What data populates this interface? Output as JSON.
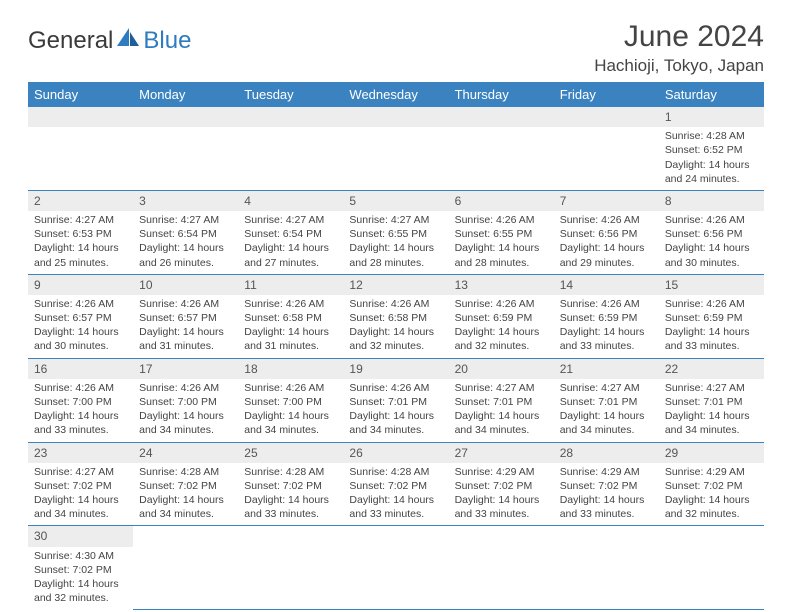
{
  "brand": {
    "part1": "General",
    "part2": "Blue"
  },
  "title": "June 2024",
  "location": "Hachioji, Tokyo, Japan",
  "colors": {
    "header_bg": "#3b83c0",
    "header_text": "#ffffff",
    "daynum_bg": "#ededed",
    "text": "#444444",
    "border": "#3b83c0"
  },
  "day_headers": [
    "Sunday",
    "Monday",
    "Tuesday",
    "Wednesday",
    "Thursday",
    "Friday",
    "Saturday"
  ],
  "weeks": [
    [
      null,
      null,
      null,
      null,
      null,
      null,
      {
        "n": "1",
        "sr": "Sunrise: 4:28 AM",
        "ss": "Sunset: 6:52 PM",
        "d1": "Daylight: 14 hours",
        "d2": "and 24 minutes."
      }
    ],
    [
      {
        "n": "2",
        "sr": "Sunrise: 4:27 AM",
        "ss": "Sunset: 6:53 PM",
        "d1": "Daylight: 14 hours",
        "d2": "and 25 minutes."
      },
      {
        "n": "3",
        "sr": "Sunrise: 4:27 AM",
        "ss": "Sunset: 6:54 PM",
        "d1": "Daylight: 14 hours",
        "d2": "and 26 minutes."
      },
      {
        "n": "4",
        "sr": "Sunrise: 4:27 AM",
        "ss": "Sunset: 6:54 PM",
        "d1": "Daylight: 14 hours",
        "d2": "and 27 minutes."
      },
      {
        "n": "5",
        "sr": "Sunrise: 4:27 AM",
        "ss": "Sunset: 6:55 PM",
        "d1": "Daylight: 14 hours",
        "d2": "and 28 minutes."
      },
      {
        "n": "6",
        "sr": "Sunrise: 4:26 AM",
        "ss": "Sunset: 6:55 PM",
        "d1": "Daylight: 14 hours",
        "d2": "and 28 minutes."
      },
      {
        "n": "7",
        "sr": "Sunrise: 4:26 AM",
        "ss": "Sunset: 6:56 PM",
        "d1": "Daylight: 14 hours",
        "d2": "and 29 minutes."
      },
      {
        "n": "8",
        "sr": "Sunrise: 4:26 AM",
        "ss": "Sunset: 6:56 PM",
        "d1": "Daylight: 14 hours",
        "d2": "and 30 minutes."
      }
    ],
    [
      {
        "n": "9",
        "sr": "Sunrise: 4:26 AM",
        "ss": "Sunset: 6:57 PM",
        "d1": "Daylight: 14 hours",
        "d2": "and 30 minutes."
      },
      {
        "n": "10",
        "sr": "Sunrise: 4:26 AM",
        "ss": "Sunset: 6:57 PM",
        "d1": "Daylight: 14 hours",
        "d2": "and 31 minutes."
      },
      {
        "n": "11",
        "sr": "Sunrise: 4:26 AM",
        "ss": "Sunset: 6:58 PM",
        "d1": "Daylight: 14 hours",
        "d2": "and 31 minutes."
      },
      {
        "n": "12",
        "sr": "Sunrise: 4:26 AM",
        "ss": "Sunset: 6:58 PM",
        "d1": "Daylight: 14 hours",
        "d2": "and 32 minutes."
      },
      {
        "n": "13",
        "sr": "Sunrise: 4:26 AM",
        "ss": "Sunset: 6:59 PM",
        "d1": "Daylight: 14 hours",
        "d2": "and 32 minutes."
      },
      {
        "n": "14",
        "sr": "Sunrise: 4:26 AM",
        "ss": "Sunset: 6:59 PM",
        "d1": "Daylight: 14 hours",
        "d2": "and 33 minutes."
      },
      {
        "n": "15",
        "sr": "Sunrise: 4:26 AM",
        "ss": "Sunset: 6:59 PM",
        "d1": "Daylight: 14 hours",
        "d2": "and 33 minutes."
      }
    ],
    [
      {
        "n": "16",
        "sr": "Sunrise: 4:26 AM",
        "ss": "Sunset: 7:00 PM",
        "d1": "Daylight: 14 hours",
        "d2": "and 33 minutes."
      },
      {
        "n": "17",
        "sr": "Sunrise: 4:26 AM",
        "ss": "Sunset: 7:00 PM",
        "d1": "Daylight: 14 hours",
        "d2": "and 34 minutes."
      },
      {
        "n": "18",
        "sr": "Sunrise: 4:26 AM",
        "ss": "Sunset: 7:00 PM",
        "d1": "Daylight: 14 hours",
        "d2": "and 34 minutes."
      },
      {
        "n": "19",
        "sr": "Sunrise: 4:26 AM",
        "ss": "Sunset: 7:01 PM",
        "d1": "Daylight: 14 hours",
        "d2": "and 34 minutes."
      },
      {
        "n": "20",
        "sr": "Sunrise: 4:27 AM",
        "ss": "Sunset: 7:01 PM",
        "d1": "Daylight: 14 hours",
        "d2": "and 34 minutes."
      },
      {
        "n": "21",
        "sr": "Sunrise: 4:27 AM",
        "ss": "Sunset: 7:01 PM",
        "d1": "Daylight: 14 hours",
        "d2": "and 34 minutes."
      },
      {
        "n": "22",
        "sr": "Sunrise: 4:27 AM",
        "ss": "Sunset: 7:01 PM",
        "d1": "Daylight: 14 hours",
        "d2": "and 34 minutes."
      }
    ],
    [
      {
        "n": "23",
        "sr": "Sunrise: 4:27 AM",
        "ss": "Sunset: 7:02 PM",
        "d1": "Daylight: 14 hours",
        "d2": "and 34 minutes."
      },
      {
        "n": "24",
        "sr": "Sunrise: 4:28 AM",
        "ss": "Sunset: 7:02 PM",
        "d1": "Daylight: 14 hours",
        "d2": "and 34 minutes."
      },
      {
        "n": "25",
        "sr": "Sunrise: 4:28 AM",
        "ss": "Sunset: 7:02 PM",
        "d1": "Daylight: 14 hours",
        "d2": "and 33 minutes."
      },
      {
        "n": "26",
        "sr": "Sunrise: 4:28 AM",
        "ss": "Sunset: 7:02 PM",
        "d1": "Daylight: 14 hours",
        "d2": "and 33 minutes."
      },
      {
        "n": "27",
        "sr": "Sunrise: 4:29 AM",
        "ss": "Sunset: 7:02 PM",
        "d1": "Daylight: 14 hours",
        "d2": "and 33 minutes."
      },
      {
        "n": "28",
        "sr": "Sunrise: 4:29 AM",
        "ss": "Sunset: 7:02 PM",
        "d1": "Daylight: 14 hours",
        "d2": "and 33 minutes."
      },
      {
        "n": "29",
        "sr": "Sunrise: 4:29 AM",
        "ss": "Sunset: 7:02 PM",
        "d1": "Daylight: 14 hours",
        "d2": "and 32 minutes."
      }
    ],
    [
      {
        "n": "30",
        "sr": "Sunrise: 4:30 AM",
        "ss": "Sunset: 7:02 PM",
        "d1": "Daylight: 14 hours",
        "d2": "and 32 minutes."
      },
      null,
      null,
      null,
      null,
      null,
      null
    ]
  ]
}
